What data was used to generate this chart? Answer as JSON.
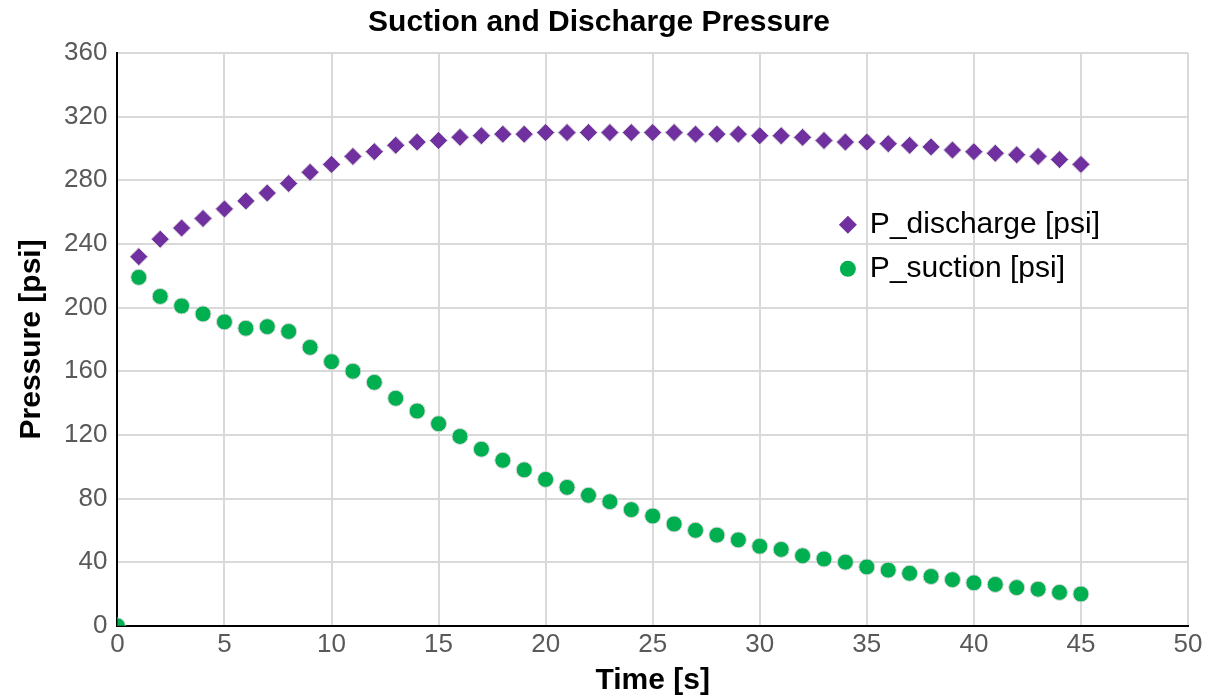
{
  "chart_data": {
    "type": "scatter",
    "title": "Suction and Discharge Pressure",
    "xlabel": "Time [s]",
    "ylabel": "Pressure [psi]",
    "xlim": [
      0,
      50
    ],
    "xticks": [
      0,
      5,
      10,
      15,
      20,
      25,
      30,
      35,
      40,
      45,
      50
    ],
    "ylim": [
      0,
      360
    ],
    "yticks": [
      0,
      40,
      80,
      120,
      160,
      200,
      240,
      280,
      320,
      360
    ],
    "grid": true,
    "legend": "right",
    "series": [
      {
        "name": "P_discharge [psi]",
        "color": "#7030a0",
        "marker": "diamond",
        "x": [
          1,
          2,
          3,
          4,
          5,
          6,
          7,
          8,
          9,
          10,
          11,
          12,
          13,
          14,
          15,
          16,
          17,
          18,
          19,
          20,
          21,
          22,
          23,
          24,
          25,
          26,
          27,
          28,
          29,
          30,
          31,
          32,
          33,
          34,
          35,
          36,
          37,
          38,
          39,
          40,
          41,
          42,
          43,
          44,
          45
        ],
        "values": [
          232,
          243,
          250,
          256,
          262,
          267,
          272,
          278,
          285,
          290,
          295,
          298,
          302,
          304,
          305,
          307,
          308,
          309,
          309,
          310,
          310,
          310,
          310,
          310,
          310,
          310,
          309,
          309,
          309,
          308,
          308,
          307,
          305,
          304,
          304,
          303,
          302,
          301,
          299,
          298,
          297,
          296,
          295,
          293,
          290
        ]
      },
      {
        "name": "P_suction [psi]",
        "color": "#00b050",
        "marker": "circle",
        "x": [
          0,
          1,
          2,
          3,
          4,
          5,
          6,
          7,
          8,
          9,
          10,
          11,
          12,
          13,
          14,
          15,
          16,
          17,
          18,
          19,
          20,
          21,
          22,
          23,
          24,
          25,
          26,
          27,
          28,
          29,
          30,
          31,
          32,
          33,
          34,
          35,
          36,
          37,
          38,
          39,
          40,
          41,
          42,
          43,
          44,
          45
        ],
        "values": [
          0,
          219,
          207,
          201,
          196,
          191,
          187,
          188,
          185,
          175,
          166,
          160,
          153,
          143,
          135,
          127,
          119,
          111,
          104,
          98,
          92,
          87,
          82,
          78,
          73,
          69,
          64,
          60,
          57,
          54,
          50,
          48,
          44,
          42,
          40,
          37,
          35,
          33,
          31,
          29,
          27,
          26,
          24,
          23,
          21,
          20
        ]
      }
    ]
  }
}
